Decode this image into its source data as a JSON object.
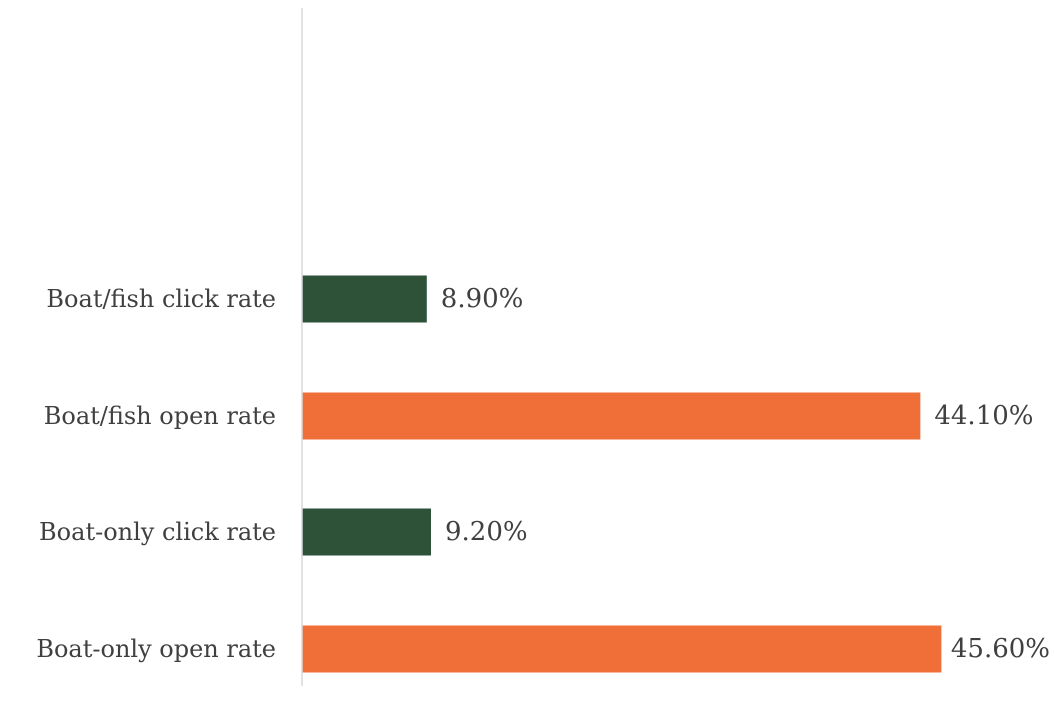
{
  "chart_data": {
    "type": "bar",
    "orientation": "horizontal",
    "categories": [
      "Boat/fish click rate",
      "Boat/fish open rate",
      "Boat-only click rate",
      "Boat-only open rate"
    ],
    "values": [
      8.9,
      44.1,
      9.2,
      45.6
    ],
    "data_labels": [
      "8.90%",
      "44.10%",
      "9.20%",
      "45.60%"
    ],
    "bar_colors": [
      "#2d5238",
      "#f06e38",
      "#2d5238",
      "#f06e38"
    ],
    "unit": "%",
    "xlim": [
      0,
      46.5
    ],
    "axis_color": "#d9d9d9",
    "grid": false,
    "legend": "none"
  }
}
